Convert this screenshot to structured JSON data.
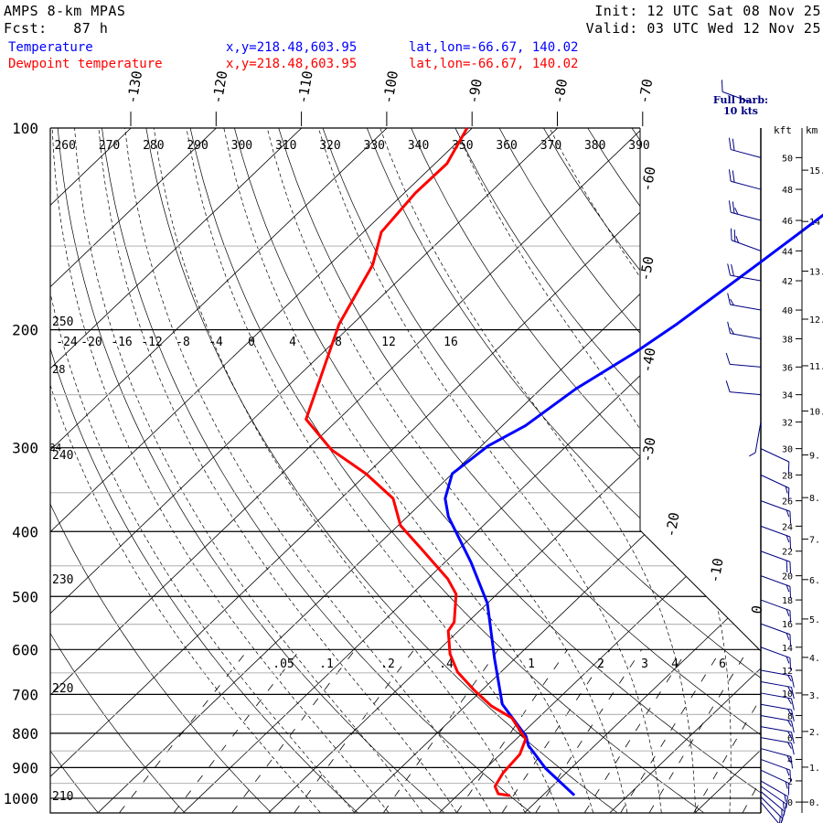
{
  "header": {
    "model": "AMPS 8-km MPAS",
    "forecast": "Fcst:   87 h",
    "init": "Init: 12 UTC Sat 08 Nov 25",
    "valid": "Valid: 03 UTC Wed 12 Nov 25"
  },
  "legend": [
    {
      "name": "Temperature",
      "xy": "x,y=218.48,603.95",
      "latlon": "lat,lon=-66.67, 140.02",
      "color": "#0000ff"
    },
    {
      "name": "Dewpoint temperature",
      "xy": "x,y=218.48,603.95",
      "latlon": "lat,lon=-66.67, 140.02",
      "color": "#ff0000"
    }
  ],
  "barb_note": {
    "line1": "Full barb:",
    "line2": "10 kts"
  },
  "chart_data": {
    "type": "skew-t",
    "title": "AMPS 8-km MPAS",
    "ylabel": "Pressure (hPa)",
    "ylim": [
      1000,
      100
    ],
    "pressure_labels": [
      "100",
      "200",
      "300",
      "400",
      "500",
      "600",
      "700",
      "800",
      "900",
      "1000"
    ],
    "isotherm_labels_top": [
      "-130",
      "-120",
      "-110",
      "-100",
      "-90",
      "-80",
      "-70"
    ],
    "isotherm_labels_right": [
      "-60",
      "-50",
      "-40",
      "-30",
      "-20",
      "-10",
      "0"
    ],
    "dry_adiabat_labels_top": [
      "260",
      "270",
      "280",
      "290",
      "300",
      "310",
      "320",
      "330",
      "340",
      "350",
      "360",
      "370",
      "380",
      "390"
    ],
    "dry_adiabat_labels_left": [
      "250",
      "240",
      "230",
      "220",
      "210"
    ],
    "moist_adiabat_labels": [
      "-24",
      "-20",
      "-16",
      "-12",
      "-8",
      "-4",
      "0",
      "4",
      "8",
      "12",
      "16"
    ],
    "moist_adiabat_labels_left": [
      "28",
      "34"
    ],
    "mixing_ratio_labels": [
      ".05",
      ".1",
      ".2",
      ".4",
      "1",
      "2",
      "3",
      "4",
      "6"
    ],
    "height_axis": {
      "kft_label": "kft",
      "km_label": "km",
      "kft_ticks": [
        "50",
        "48",
        "46",
        "44",
        "42",
        "40",
        "38",
        "36",
        "34",
        "32",
        "30",
        "28",
        "26",
        "24",
        "22",
        "20",
        "18",
        "16",
        "14",
        "12",
        "10",
        "8",
        "6",
        "4",
        "2",
        "0"
      ],
      "km_ticks": [
        "15.",
        "14",
        "13.",
        "12.",
        "11.",
        "10.",
        "9.",
        "8.",
        "7.",
        "6.",
        "5.",
        "4.",
        "3.",
        "2.",
        "1.",
        "0."
      ]
    },
    "series": [
      {
        "name": "Temperature",
        "color": "#0000ff",
        "points_p_T": [
          [
            990,
            3.7
          ],
          [
            902,
            -3.0
          ],
          [
            834,
            -7.8
          ],
          [
            808,
            -9.2
          ],
          [
            724,
            -15.9
          ],
          [
            619,
            -22.4
          ],
          [
            512,
            -30.0
          ],
          [
            445,
            -36.9
          ],
          [
            380,
            -45.2
          ],
          [
            357,
            -47.8
          ],
          [
            328,
            -50.0
          ],
          [
            298,
            -49.2
          ],
          [
            278,
            -47.3
          ],
          [
            245,
            -45.9
          ],
          [
            216,
            -43.4
          ],
          [
            196,
            -42.0
          ],
          [
            159,
            -39.8
          ],
          [
            135,
            -38.2
          ],
          [
            120,
            -37.5
          ]
        ]
      },
      {
        "name": "Dewpoint temperature",
        "color": "#ff0000",
        "points_p_T": [
          [
            991,
            -3.8
          ],
          [
            985,
            -5.4
          ],
          [
            960,
            -6.7
          ],
          [
            916,
            -7.4
          ],
          [
            860,
            -7.7
          ],
          [
            816,
            -8.9
          ],
          [
            759,
            -13.1
          ],
          [
            728,
            -17.0
          ],
          [
            690,
            -20.9
          ],
          [
            648,
            -25.1
          ],
          [
            609,
            -28.2
          ],
          [
            563,
            -31.2
          ],
          [
            546,
            -31.6
          ],
          [
            496,
            -34.8
          ],
          [
            471,
            -37.6
          ],
          [
            424,
            -44.5
          ],
          [
            392,
            -49.7
          ],
          [
            357,
            -53.9
          ],
          [
            328,
            -60.1
          ],
          [
            302,
            -67.1
          ],
          [
            272,
            -73.8
          ],
          [
            196,
            -81.6
          ],
          [
            160,
            -84.9
          ],
          [
            143,
            -87.9
          ],
          [
            125,
            -88.7
          ],
          [
            113,
            -88.6
          ],
          [
            100,
            -90.6
          ]
        ]
      }
    ],
    "wind_barbs": [
      {
        "kft": 50,
        "dir_deg": 285,
        "speed_kts": 20
      },
      {
        "kft": 48,
        "dir_deg": 285,
        "speed_kts": 20
      },
      {
        "kft": 46,
        "dir_deg": 285,
        "speed_kts": 25
      },
      {
        "kft": 44,
        "dir_deg": 290,
        "speed_kts": 25
      },
      {
        "kft": 42,
        "dir_deg": 280,
        "speed_kts": 20
      },
      {
        "kft": 40,
        "dir_deg": 280,
        "speed_kts": 15
      },
      {
        "kft": 38,
        "dir_deg": 280,
        "speed_kts": 15
      },
      {
        "kft": 36,
        "dir_deg": 275,
        "speed_kts": 10
      },
      {
        "kft": 34,
        "dir_deg": 275,
        "speed_kts": 10
      },
      {
        "kft": 32,
        "dir_deg": 190,
        "speed_kts": 5
      },
      {
        "kft": 30,
        "dir_deg": 115,
        "speed_kts": 10
      },
      {
        "kft": 28,
        "dir_deg": 115,
        "speed_kts": 15
      },
      {
        "kft": 26,
        "dir_deg": 110,
        "speed_kts": 15
      },
      {
        "kft": 24,
        "dir_deg": 110,
        "speed_kts": 15
      },
      {
        "kft": 22,
        "dir_deg": 110,
        "speed_kts": 20
      },
      {
        "kft": 20,
        "dir_deg": 110,
        "speed_kts": 15
      },
      {
        "kft": 18,
        "dir_deg": 110,
        "speed_kts": 15
      },
      {
        "kft": 16,
        "dir_deg": 110,
        "speed_kts": 15
      },
      {
        "kft": 14,
        "dir_deg": 110,
        "speed_kts": 15
      },
      {
        "kft": 12,
        "dir_deg": 100,
        "speed_kts": 15
      },
      {
        "kft": 11,
        "dir_deg": 100,
        "speed_kts": 15
      },
      {
        "kft": 10,
        "dir_deg": 100,
        "speed_kts": 15
      },
      {
        "kft": 9,
        "dir_deg": 100,
        "speed_kts": 15
      },
      {
        "kft": 8,
        "dir_deg": 100,
        "speed_kts": 15
      },
      {
        "kft": 7,
        "dir_deg": 100,
        "speed_kts": 15
      },
      {
        "kft": 6,
        "dir_deg": 100,
        "speed_kts": 15
      },
      {
        "kft": 5,
        "dir_deg": 105,
        "speed_kts": 15
      },
      {
        "kft": 4,
        "dir_deg": 110,
        "speed_kts": 15
      },
      {
        "kft": 3,
        "dir_deg": 115,
        "speed_kts": 15
      },
      {
        "kft": 2,
        "dir_deg": 120,
        "speed_kts": 15
      },
      {
        "kft": 1.5,
        "dir_deg": 125,
        "speed_kts": 15
      },
      {
        "kft": 1,
        "dir_deg": 130,
        "speed_kts": 15
      },
      {
        "kft": 0.5,
        "dir_deg": 135,
        "speed_kts": 15
      },
      {
        "kft": 0,
        "dir_deg": 140,
        "speed_kts": 10
      }
    ]
  }
}
